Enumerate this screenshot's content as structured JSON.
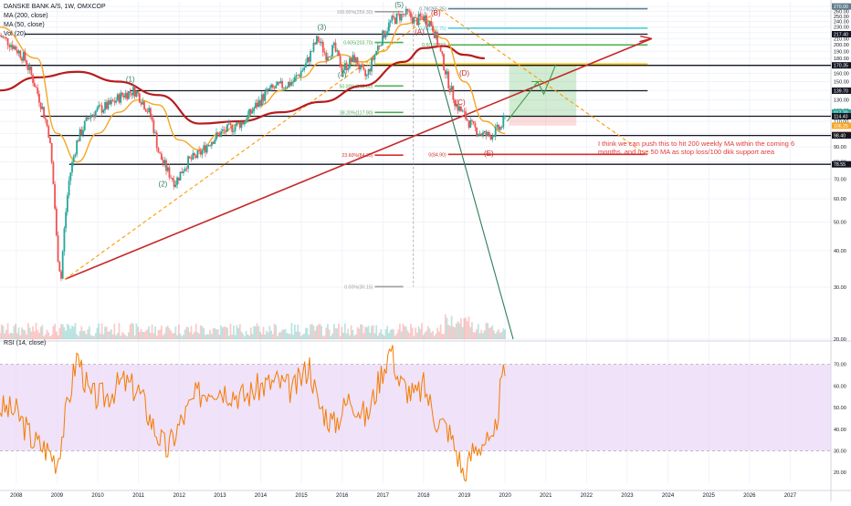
{
  "legend": {
    "title": "DANSKE BANK A/S, 1W, OMXCOP",
    "ma200": "MA (200, close)",
    "ma50": "MA (50, close)",
    "vol": "Vol (20)"
  },
  "rsi_legend": "RSI (14, close)",
  "annotation_note": "I think we can push this to hit 200 weekly MA within the coming 6 months, and use 50 MA as stop  loss/100 dkk support area",
  "colors": {
    "candle_up": "#26a69a",
    "candle_down": "#ef5350",
    "ma200": "#b71c1c",
    "ma50": "#f5a623",
    "trendline": "#c62828",
    "rsi": "#f57c00",
    "rsi_band": "#e9d8f7",
    "fib_green": "#4caf50",
    "fib_teal": "#26a69a",
    "fib_cyan": "#4dd0e1",
    "fib_yellow": "#ffc107",
    "fib_orange": "#ff9800",
    "fib_red": "#d32f2f",
    "fib_grey": "#9e9e9e",
    "fib_steel": "#607d8b"
  },
  "chart_data": [
    {
      "type": "candlestick",
      "title": "DANSKE BANK A/S, 1W, OMXCOP",
      "x_axis": {
        "ticks": [
          "2008",
          "2009",
          "2010",
          "2011",
          "2012",
          "2013",
          "2014",
          "2015",
          "2016",
          "2017",
          "2018",
          "2019",
          "2020",
          "2021",
          "2022",
          "2023",
          "2024",
          "2025",
          "2026",
          "2027"
        ],
        "range": [
          2007.6,
          2028.0
        ]
      },
      "y_axis": {
        "scale": "log",
        "range": [
          20,
          280
        ],
        "ticks": [
          "270.00",
          "260.00",
          "250.00",
          "240.00",
          "230.00",
          "220.00",
          "210.00",
          "200.00",
          "190.00",
          "180.00",
          "170.00",
          "160.00",
          "150.00",
          "140.00",
          "130.00",
          "120.00",
          "110.00",
          "100.00",
          "90.00",
          "80.00",
          "70.00",
          "60.00",
          "50.00",
          "40.00",
          "30.00",
          "20.00"
        ]
      },
      "price_series": {
        "name": "DANSKE BANK A/S",
        "x": [
          2007.6,
          2007.9,
          2008.2,
          2008.5,
          2008.8,
          2009.0,
          2009.1,
          2009.3,
          2009.5,
          2009.8,
          2010.0,
          2010.3,
          2010.6,
          2010.9,
          2011.0,
          2011.3,
          2011.5,
          2011.7,
          2011.9,
          2012.2,
          2012.5,
          2012.8,
          2013.0,
          2013.3,
          2013.6,
          2013.9,
          2014.2,
          2014.5,
          2014.8,
          2015.1,
          2015.4,
          2015.6,
          2015.8,
          2016.0,
          2016.3,
          2016.5,
          2016.6,
          2016.8,
          2017.0,
          2017.2,
          2017.4,
          2017.6,
          2017.8,
          2018.0,
          2018.2,
          2018.4,
          2018.6,
          2018.8,
          2019.0,
          2019.2,
          2019.4,
          2019.6,
          2019.7,
          2019.9,
          2020.0
        ],
        "y": [
          215,
          200,
          180,
          140,
          100,
          40,
          32,
          70,
          95,
          115,
          120,
          125,
          135,
          140,
          135,
          115,
          85,
          75,
          68,
          80,
          85,
          95,
          100,
          105,
          110,
          125,
          140,
          145,
          150,
          170,
          210,
          185,
          195,
          165,
          180,
          160,
          155,
          185,
          215,
          240,
          250,
          255,
          240,
          250,
          235,
          190,
          150,
          125,
          115,
          105,
          100,
          98,
          100,
          105,
          112
        ]
      },
      "overlays": [
        {
          "name": "MA (200, close)",
          "x": [
            2007.6,
            2008.5,
            2009.5,
            2010.5,
            2011.5,
            2012.5,
            2013.5,
            2014.5,
            2015.5,
            2016.5,
            2017.5,
            2018.0,
            2018.5,
            2019.0,
            2019.5
          ],
          "y": [
            140,
            155,
            162,
            150,
            135,
            108,
            110,
            118,
            128,
            145,
            175,
            195,
            198,
            185,
            180
          ]
        },
        {
          "name": "MA (50, close)",
          "x": [
            2007.6,
            2008.5,
            2009.0,
            2009.5,
            2010.0,
            2010.5,
            2011.0,
            2011.5,
            2012.0,
            2012.5,
            2013.0,
            2013.5,
            2014.0,
            2014.5,
            2015.0,
            2015.5,
            2016.0,
            2016.5,
            2017.0,
            2017.5,
            2018.0,
            2018.5,
            2019.0,
            2019.5,
            2020.0
          ],
          "y": [
            230,
            180,
            100,
            80,
            100,
            118,
            130,
            125,
            95,
            88,
            100,
            108,
            125,
            140,
            155,
            175,
            185,
            175,
            190,
            235,
            245,
            210,
            150,
            110,
            100
          ]
        }
      ],
      "horizontal_levels": [
        217.4,
        170.35,
        139.7,
        114.4,
        98.4,
        78.55
      ],
      "fibonacci_levels": [
        {
          "label": "0.78(265.25)",
          "value": 265.25
        },
        {
          "label": "100.00%(259.30)",
          "value": 259.3
        },
        {
          "label": "0.65(227.75)",
          "value": 227.75
        },
        {
          "label": "0.605(203.70)",
          "value": 203.7
        },
        {
          "label": "0.5(199.90)",
          "value": 199.9
        },
        {
          "label": "61.80%(172.15)",
          "value": 172.15
        },
        {
          "label": "50.00%(145.00)",
          "value": 145.0
        },
        {
          "label": "38.20%(117.90)",
          "value": 117.9
        },
        {
          "label": "23.60%(84.35)",
          "value": 84.35
        },
        {
          "label": "0(84.90)",
          "value": 84.9
        },
        {
          "label": "0.00%(30.15)",
          "value": 30.15
        }
      ],
      "wave_labels": [
        "(1)",
        "(2)",
        "(3)",
        "(4)",
        "(5)",
        "(A)",
        "(B)",
        "(C)",
        "(D)",
        "(E)"
      ],
      "price_tags": [
        "270.00",
        "217.40",
        "170.35",
        "139.70",
        "117.70",
        "114.40",
        "106.25",
        "98.79",
        "98.40",
        "78.55"
      ]
    },
    {
      "type": "line",
      "title": "RSI (14, close)",
      "y_axis": {
        "range": [
          15,
          80
        ],
        "ticks": [
          "70.00",
          "60.00",
          "50.00",
          "40.00",
          "30.00",
          "20.00"
        ]
      },
      "band": [
        30,
        70
      ],
      "series": {
        "x": [
          2007.6,
          2008.0,
          2008.4,
          2008.8,
          2009.0,
          2009.2,
          2009.5,
          2009.8,
          2010.2,
          2010.6,
          2011.0,
          2011.4,
          2011.7,
          2012.0,
          2012.4,
          2012.8,
          2013.2,
          2013.6,
          2014.0,
          2014.4,
          2014.8,
          2015.2,
          2015.4,
          2015.8,
          2016.2,
          2016.6,
          2017.0,
          2017.2,
          2017.4,
          2017.8,
          2018.0,
          2018.3,
          2018.6,
          2018.9,
          2019.0,
          2019.2,
          2019.5,
          2019.7,
          2019.9,
          2020.0
        ],
        "y": [
          50,
          48,
          35,
          30,
          25,
          45,
          75,
          55,
          55,
          62,
          58,
          40,
          30,
          42,
          55,
          60,
          58,
          55,
          60,
          62,
          58,
          70,
          52,
          42,
          55,
          45,
          68,
          78,
          62,
          55,
          60,
          45,
          40,
          25,
          17,
          30,
          35,
          30,
          60,
          66
        ]
      }
    }
  ]
}
